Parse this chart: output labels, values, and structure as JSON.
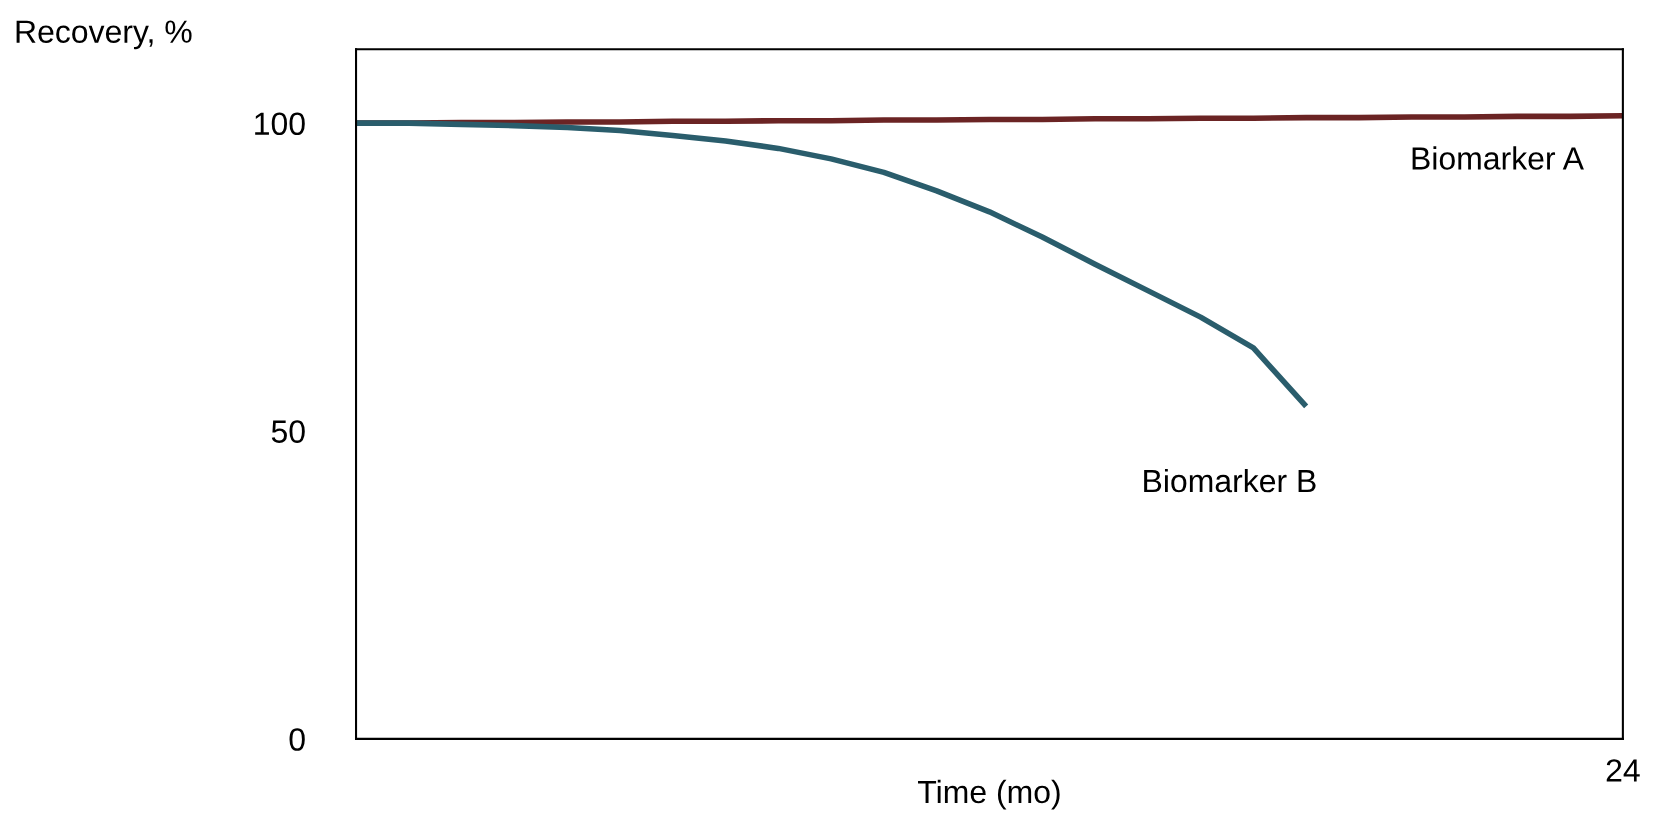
{
  "chart_data": {
    "type": "line",
    "xlabel": "Time (mo)",
    "ylabel": "Recovery, %",
    "categories": [
      null,
      null,
      null,
      null,
      null,
      null,
      null,
      null,
      null,
      null,
      null,
      null,
      null,
      null,
      null,
      null,
      null,
      null,
      null,
      null,
      null,
      null,
      null,
      null,
      "24"
    ],
    "ylim": [
      0,
      112
    ],
    "yticks": [
      0,
      50,
      100
    ],
    "grid": false,
    "legend": false,
    "marker": "none",
    "line_style": "solid",
    "series": [
      {
        "name": "Biomarker A",
        "color": "#6b2424",
        "values": [
          100,
          100,
          100.1,
          100.1,
          100.2,
          100.2,
          100.3,
          100.3,
          100.4,
          100.4,
          100.5,
          100.5,
          100.6,
          100.6,
          100.7,
          100.7,
          100.8,
          100.8,
          100.9,
          100.9,
          101,
          101,
          101.1,
          101.1,
          101.2
        ]
      },
      {
        "name": "Biomarker B",
        "color": "#2a5d6c",
        "values": [
          100,
          100,
          99.8,
          99.6,
          99.3,
          98.8,
          98,
          97.1,
          95.9,
          94.2,
          92,
          89,
          85.6,
          81.5,
          77.1,
          72.8,
          68.5,
          63.5,
          54,
          null,
          null,
          null,
          null,
          null,
          null
        ]
      }
    ]
  }
}
